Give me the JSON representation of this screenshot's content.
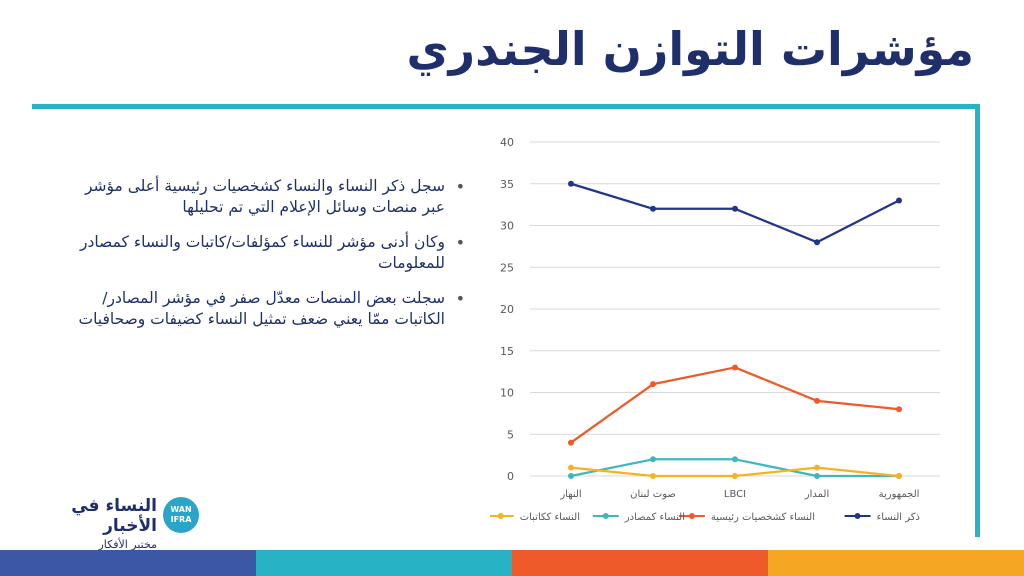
{
  "slide": {
    "title": "مؤشرات التوازن الجندري",
    "bullets": [
      "سجل ذكر النساء والنساء كشخصيات رئيسية أعلى مؤشر عبر منصات وسائل الإعلام التي تم تحليلها",
      "وكان أدنى مؤشر للنساء كمؤلفات/كاتبات والنساء كمصادر للمعلومات",
      "سجلت بعض المنصات معدّل صفر في مؤشر المصادر/الكاتبات ممّا يعني ضعف تمثيل النساء كضيفات وصحافيات"
    ]
  },
  "logo": {
    "main": "النساء في الأخبار",
    "sub": "مختبر الأفكار",
    "badge_line1": "WAN",
    "badge_line2": "IFRA"
  },
  "colors": {
    "title": "#1f2f6b",
    "accent_bar": "#27b3c5",
    "footer": [
      "#3b57a6",
      "#27b3c5",
      "#ee5a2a",
      "#f5a623"
    ]
  },
  "chart_data": {
    "type": "line",
    "categories": [
      "النهار",
      "صوت لبنان",
      "LBCI",
      "المدار",
      "الجمهورية"
    ],
    "ylim": [
      0,
      40
    ],
    "yticks": [
      0,
      5,
      10,
      15,
      20,
      25,
      30,
      35,
      40
    ],
    "grid": true,
    "legend_position": "bottom",
    "series": [
      {
        "name": "ذكر النساء",
        "color": "#21358b",
        "values": [
          35,
          32,
          32,
          28,
          33
        ]
      },
      {
        "name": "النساء كشخصيات رئيسية",
        "color": "#ee5a2a",
        "values": [
          4,
          11,
          13,
          9,
          8
        ]
      },
      {
        "name": "النساء كمصادر",
        "color": "#3fb8bd",
        "values": [
          0,
          2,
          2,
          0,
          0
        ]
      },
      {
        "name": "النساء ككاتبات",
        "color": "#f5b324",
        "values": [
          1,
          0,
          0,
          1,
          0
        ]
      }
    ]
  }
}
